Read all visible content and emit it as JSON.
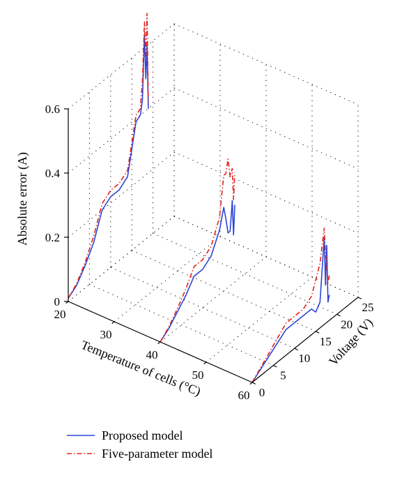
{
  "chart_data": {
    "type": "line",
    "projection": "3d",
    "title": "",
    "xlabel": "Temperature of cells (°C)",
    "ylabel": "Voltage (V)",
    "zlabel": "Absolute error (A)",
    "xlim": [
      20,
      60
    ],
    "ylim": [
      0,
      25
    ],
    "zlim": [
      0,
      0.6
    ],
    "xticks": [
      "20",
      "30",
      "40",
      "50",
      "60"
    ],
    "yticks": [
      "0",
      "5",
      "10",
      "15",
      "20",
      "25"
    ],
    "zticks": [
      "0",
      "0.2",
      "0.4",
      "0.6"
    ],
    "grid": true,
    "legend_position": "bottom-left",
    "series": [
      {
        "name": "Proposed model",
        "color": "#2b46d6",
        "dash": "solid",
        "curves": [
          {
            "temperature": 20,
            "voltage": [
              0,
              2,
              4,
              6,
              8,
              10,
              12,
              14,
              16,
              17,
              17.5,
              18,
              18.3,
              18.6,
              18.9
            ],
            "error": [
              0.01,
              0.03,
              0.07,
              0.12,
              0.2,
              0.22,
              0.22,
              0.24,
              0.39,
              0.4,
              0.44,
              0.64,
              0.5,
              0.6,
              0.4
            ]
          },
          {
            "temperature": 40,
            "voltage": [
              0,
              2,
              4,
              6,
              8,
              10,
              12,
              14,
              15,
              15.5,
              16,
              16.5,
              17,
              17.3,
              17.6
            ],
            "error": [
              0.0,
              0.02,
              0.05,
              0.08,
              0.12,
              0.12,
              0.14,
              0.2,
              0.26,
              0.22,
              0.17,
              0.17,
              0.26,
              0.15,
              0.24
            ]
          },
          {
            "temperature": 60,
            "voltage": [
              0,
              2,
              4,
              6,
              8,
              10,
              12,
              14,
              15,
              16,
              17,
              17.3,
              17.6,
              17.9,
              18.2
            ],
            "error": [
              0.0,
              0.02,
              0.04,
              0.06,
              0.08,
              0.08,
              0.08,
              0.08,
              0.06,
              0.08,
              0.27,
              0.12,
              0.24,
              0.06,
              0.08
            ]
          }
        ]
      },
      {
        "name": "Five-parameter model",
        "color": "#e3221c",
        "dash": "dashdot",
        "curves": [
          {
            "temperature": 20,
            "voltage": [
              0,
              2,
              4,
              6,
              8,
              10,
              12,
              14,
              16,
              17,
              17.5,
              18,
              18.3,
              18.6,
              18.9
            ],
            "error": [
              0.01,
              0.035,
              0.08,
              0.14,
              0.22,
              0.24,
              0.24,
              0.26,
              0.41,
              0.42,
              0.5,
              0.68,
              0.56,
              0.7,
              0.42
            ]
          },
          {
            "temperature": 40,
            "voltage": [
              0,
              2,
              4,
              6,
              8,
              10,
              12,
              14,
              15,
              15.5,
              16,
              16.5,
              17,
              17.3,
              17.6
            ],
            "error": [
              0.0,
              0.025,
              0.06,
              0.1,
              0.15,
              0.15,
              0.17,
              0.24,
              0.36,
              0.36,
              0.4,
              0.34,
              0.36,
              0.26,
              0.34
            ]
          },
          {
            "temperature": 60,
            "voltage": [
              0,
              2,
              4,
              6,
              8,
              10,
              12,
              14,
              15,
              16,
              17,
              17.3,
              17.6,
              17.9,
              18.2
            ],
            "error": [
              0.0,
              0.025,
              0.05,
              0.075,
              0.1,
              0.1,
              0.1,
              0.12,
              0.16,
              0.2,
              0.3,
              0.22,
              0.18,
              0.12,
              0.14
            ]
          }
        ]
      }
    ]
  }
}
